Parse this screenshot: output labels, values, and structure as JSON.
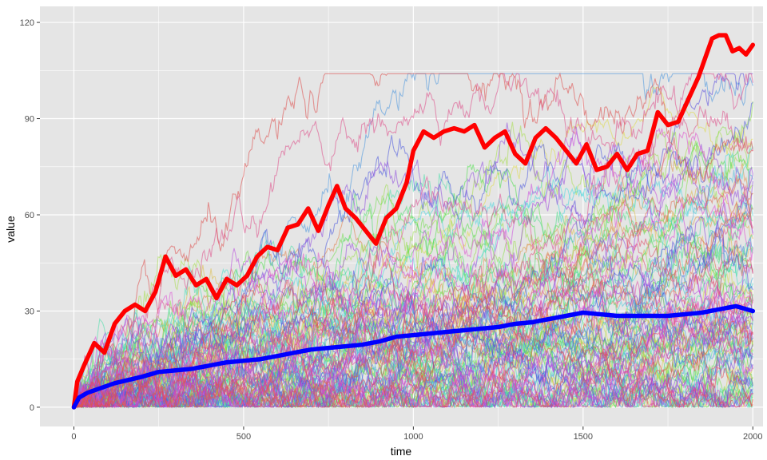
{
  "chart_data": {
    "type": "line",
    "xlabel": "time",
    "ylabel": "value",
    "xlim": [
      -100,
      2030
    ],
    "ylim": [
      -6,
      125
    ],
    "x_ticks": [
      0,
      500,
      1000,
      1500,
      2000
    ],
    "y_ticks": [
      0,
      30,
      60,
      90,
      120
    ],
    "x_tick_labels": [
      "0",
      "500",
      "1000",
      "1500",
      "2000"
    ],
    "y_tick_labels": [
      "0",
      "30",
      "60",
      "90",
      "120"
    ],
    "grid": true,
    "legend": "none",
    "background_color": "#e5e5e5",
    "grid_color": "#ffffff",
    "random_walk_count": 100,
    "random_walk_steps": 2000,
    "random_walk_opacity": 0.55,
    "series": [
      {
        "role": "maximum",
        "color": "#ff0000",
        "x": [
          0,
          10,
          30,
          60,
          90,
          120,
          150,
          180,
          210,
          240,
          270,
          300,
          330,
          360,
          390,
          420,
          450,
          480,
          510,
          540,
          570,
          600,
          630,
          660,
          690,
          720,
          750,
          775,
          800,
          830,
          860,
          890,
          920,
          950,
          980,
          1000,
          1030,
          1060,
          1090,
          1120,
          1150,
          1180,
          1210,
          1240,
          1270,
          1300,
          1330,
          1360,
          1390,
          1420,
          1450,
          1480,
          1510,
          1540,
          1570,
          1600,
          1630,
          1660,
          1690,
          1720,
          1750,
          1780,
          1810,
          1840,
          1860,
          1880,
          1900,
          1920,
          1940,
          1960,
          1980,
          2000
        ],
        "y": [
          0,
          8,
          13,
          20,
          17,
          26,
          30,
          32,
          30,
          36,
          47,
          41,
          43,
          38,
          40,
          34,
          40,
          38,
          41,
          47,
          50,
          49,
          56,
          57,
          62,
          55,
          63,
          69,
          62,
          59,
          55,
          51,
          59,
          62,
          70,
          80,
          86,
          84,
          86,
          87,
          86,
          88,
          81,
          84,
          86,
          79,
          76,
          84,
          87,
          84,
          80,
          76,
          82,
          74,
          75,
          79,
          74,
          79,
          80,
          92,
          88,
          89,
          96,
          103,
          109,
          115,
          116,
          116,
          111,
          112,
          110,
          113
        ]
      },
      {
        "role": "mean",
        "color": "#0000ff",
        "x": [
          0,
          15,
          40,
          80,
          120,
          160,
          200,
          250,
          300,
          350,
          400,
          450,
          500,
          550,
          600,
          650,
          700,
          750,
          800,
          850,
          900,
          950,
          1000,
          1050,
          1100,
          1150,
          1200,
          1250,
          1300,
          1350,
          1400,
          1450,
          1500,
          1550,
          1600,
          1650,
          1700,
          1750,
          1800,
          1850,
          1900,
          1950,
          2000
        ],
        "y": [
          0,
          3,
          4.5,
          6,
          7.5,
          8.5,
          9.5,
          11,
          11.5,
          12,
          13,
          14,
          14.5,
          15,
          16,
          17,
          18,
          18.5,
          19,
          19.5,
          20.5,
          22,
          22.5,
          23,
          23.5,
          24,
          24.5,
          25,
          26,
          26.5,
          27.5,
          28.5,
          29.5,
          29,
          28.5,
          28.5,
          28.5,
          28.5,
          29,
          29.5,
          30.5,
          31.5,
          30
        ]
      }
    ]
  }
}
